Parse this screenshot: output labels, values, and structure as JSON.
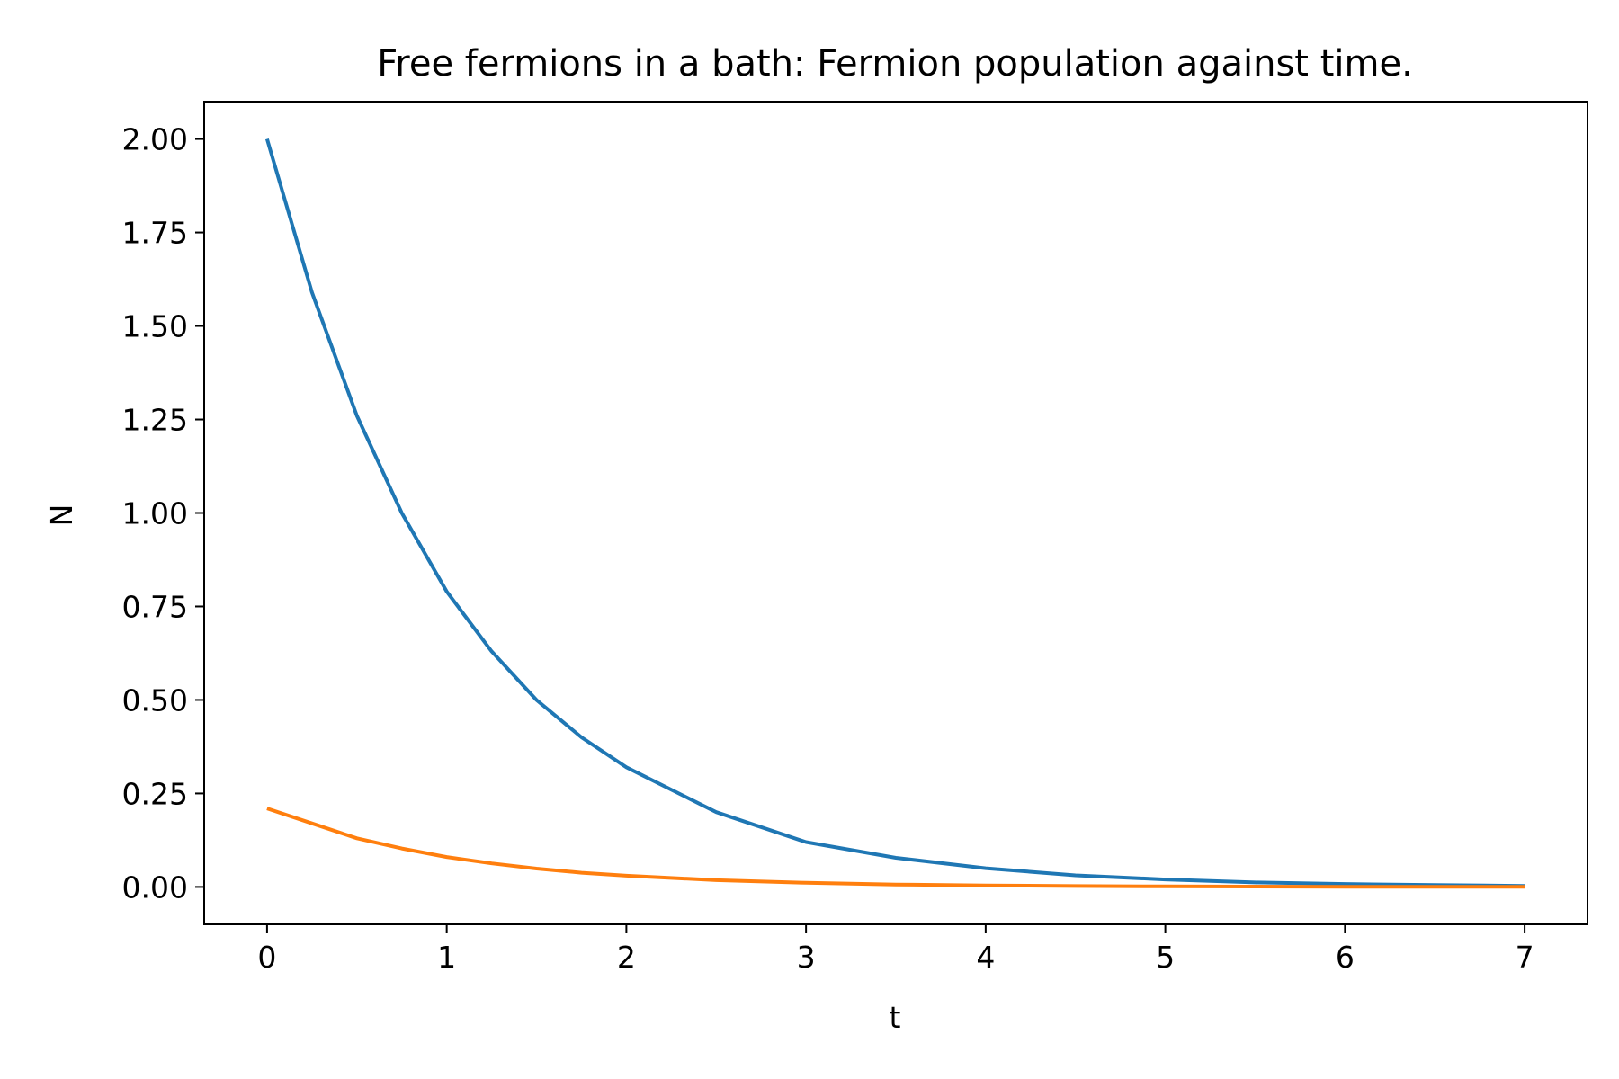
{
  "chart_data": {
    "type": "line",
    "title": "Free fermions in a bath: Fermion population against time.",
    "xlabel": "t",
    "ylabel": "N",
    "xlim": [
      -0.35,
      7.35
    ],
    "ylim": [
      -0.1,
      2.1
    ],
    "xticks": [
      "0",
      "1",
      "2",
      "3",
      "4",
      "5",
      "6",
      "7"
    ],
    "yticks": [
      "0.00",
      "0.25",
      "0.50",
      "0.75",
      "1.00",
      "1.25",
      "1.50",
      "1.75",
      "2.00"
    ],
    "grid": false,
    "legend": "none",
    "series": [
      {
        "color": "#1f77b4",
        "x": [
          0,
          0.25,
          0.5,
          0.75,
          1.0,
          1.25,
          1.5,
          1.75,
          2.0,
          2.5,
          3.0,
          3.5,
          4.0,
          4.5,
          5.0,
          5.5,
          6.0,
          6.5,
          7.0
        ],
        "y": [
          2.0,
          1.59,
          1.26,
          1.0,
          0.79,
          0.63,
          0.5,
          0.4,
          0.32,
          0.2,
          0.12,
          0.078,
          0.05,
          0.031,
          0.02,
          0.012,
          0.008,
          0.005,
          0.003
        ]
      },
      {
        "color": "#ff7f0e",
        "x": [
          0,
          0.25,
          0.5,
          0.75,
          1.0,
          1.25,
          1.5,
          1.75,
          2.0,
          2.5,
          3.0,
          3.5,
          4.0,
          4.5,
          5.0,
          5.5,
          6.0,
          6.5,
          7.0
        ],
        "y": [
          0.21,
          0.17,
          0.13,
          0.103,
          0.08,
          0.063,
          0.049,
          0.038,
          0.03,
          0.018,
          0.011,
          0.0065,
          0.004,
          0.0024,
          0.0014,
          0.0009,
          0.0005,
          0.0003,
          0.0002
        ]
      }
    ]
  }
}
